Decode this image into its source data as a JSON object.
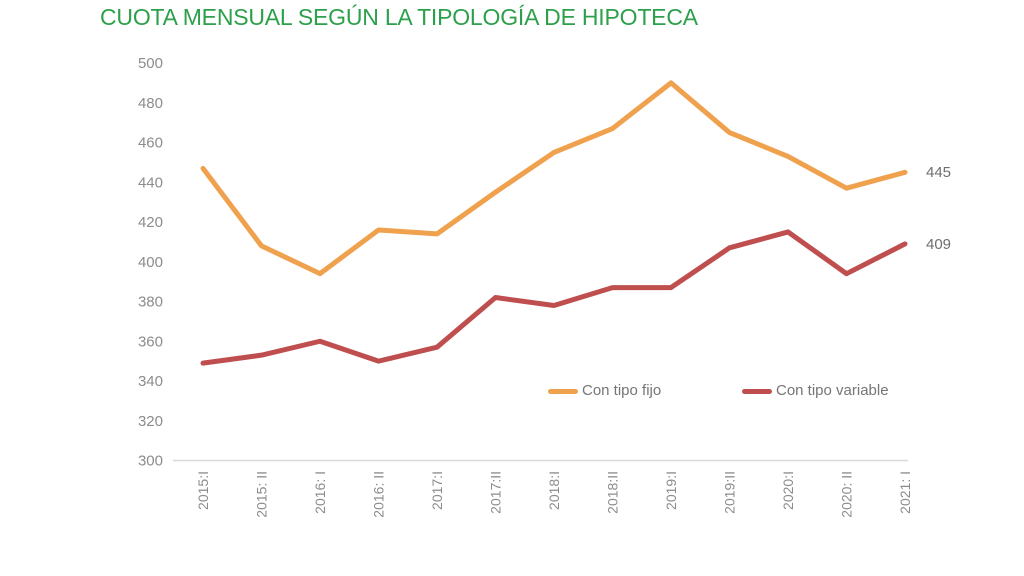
{
  "title": "CUOTA MENSUAL SEGÚN LA TIPOLOGÍA DE HIPOTECA",
  "colors": {
    "title_green": "#2da04b",
    "axis_text": "#8c8c8c",
    "legend_text": "#757575",
    "end_label_text": "#6e6e6e",
    "axis_line": "#d9d9d9",
    "background": "#ffffff",
    "series_fijo": "#efa14e",
    "series_variable": "#bf4e4f"
  },
  "chart_data": {
    "type": "line",
    "title": "CUOTA MENSUAL SEGÚN LA TIPOLOGÍA DE HIPOTECA",
    "categories": [
      "2015:I",
      "2015: II",
      "2016: I",
      "2016: II",
      "2017:I",
      "2017:II",
      "2018:I",
      "2018:II",
      "2019:I",
      "2019:II",
      "2020:I",
      "2020: II",
      "2021: I"
    ],
    "series": [
      {
        "name": "Con tipo fijo",
        "color": "#efa14e",
        "values": [
          447,
          408,
          394,
          416,
          414,
          435,
          455,
          467,
          490,
          465,
          453,
          437,
          445
        ],
        "end_label": "445"
      },
      {
        "name": "Con tipo variable",
        "color": "#bf4e4f",
        "values": [
          349,
          353,
          360,
          350,
          357,
          382,
          378,
          387,
          387,
          407,
          415,
          394,
          409
        ],
        "end_label": "409"
      }
    ],
    "xlabel": "",
    "ylabel": "",
    "ylim": [
      300,
      500
    ],
    "yticks": [
      500,
      480,
      460,
      440,
      420,
      400,
      380,
      360,
      340,
      320,
      300
    ],
    "grid": false,
    "legend_position": "inside-bottom-right"
  }
}
